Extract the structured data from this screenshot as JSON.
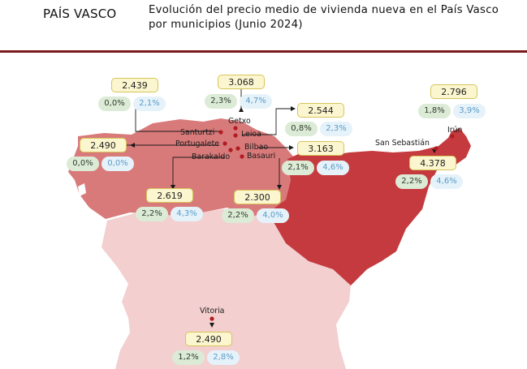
{
  "header": {
    "region": "PAÍS VASCO",
    "title": "Evolución del precio medio de vivienda nueva en el País Vasco por municipios (Junio 2024)"
  },
  "colors": {
    "accent_rule": "#7a1a1a",
    "bizkaia_fill": "#d97a7a",
    "gipuzkoa_fill": "#c53a3e",
    "araba_fill": "#f3cfcf",
    "city_dot": "#b01c22",
    "price_box": "#fbf6cf",
    "pill_green": "#dcebd6",
    "pill_blue": "#e6f2fa"
  },
  "cities": [
    {
      "key": "santurtzi",
      "name": "Santurtzi"
    },
    {
      "key": "portugalete",
      "name": "Portugalete"
    },
    {
      "key": "barakaldo",
      "name": "Barakaldo"
    },
    {
      "key": "getxo",
      "name": "Getxo"
    },
    {
      "key": "leioa",
      "name": "Leioa"
    },
    {
      "key": "bilbao",
      "name": "Bilbao"
    },
    {
      "key": "basauri",
      "name": "Basauri"
    },
    {
      "key": "san_sebastian",
      "name": "San Sebastián"
    },
    {
      "key": "irun",
      "name": "Irún"
    },
    {
      "key": "vitoria",
      "name": "Vitoria"
    }
  ],
  "cards": [
    {
      "key": "santurtzi",
      "price": "2.439",
      "change_a": "0,0%",
      "change_b": "2,1%"
    },
    {
      "key": "portugalete",
      "price": "2.490",
      "change_a": "0,0%",
      "change_b": "0,0%"
    },
    {
      "key": "barakaldo",
      "price": "2.619",
      "change_a": "2,2%",
      "change_b": "4,3%"
    },
    {
      "key": "getxo",
      "price": "3.068",
      "change_a": "2,3%",
      "change_b": "4,7%"
    },
    {
      "key": "leioa",
      "price": "2.544",
      "change_a": "0,8%",
      "change_b": "2,3%"
    },
    {
      "key": "bilbao",
      "price": "3.163",
      "change_a": "2,1%",
      "change_b": "4,6%"
    },
    {
      "key": "basauri",
      "price": "2.300",
      "change_a": "2,2%",
      "change_b": "4,0%"
    },
    {
      "key": "irun",
      "price": "2.796",
      "change_a": "1,8%",
      "change_b": "3,9%"
    },
    {
      "key": "san_sebastian",
      "price": "4.378",
      "change_a": "2,2%",
      "change_b": "4,6%"
    },
    {
      "key": "vitoria",
      "price": "2.490",
      "change_a": "1,2%",
      "change_b": "2,8%"
    }
  ]
}
